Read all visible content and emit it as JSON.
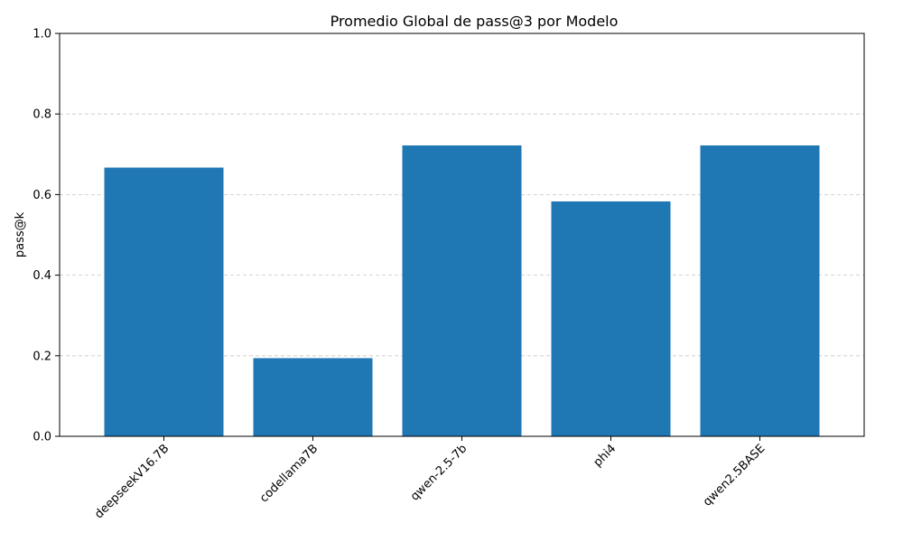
{
  "chart_data": {
    "type": "bar",
    "title": "Promedio Global de pass@3 por Modelo",
    "xlabel": "",
    "ylabel": "pass@k",
    "categories": [
      "deepseekV16.7B",
      "codellama7B",
      "qwen-2.5-7b",
      "phi4",
      "qwen2.5BASE"
    ],
    "values": [
      0.667,
      0.194,
      0.722,
      0.583,
      0.722
    ],
    "ylim": [
      0,
      1.0
    ],
    "yticks": [
      "0.0",
      "0.2",
      "0.4",
      "0.6",
      "0.8",
      "1.0"
    ],
    "grid": "y-dashed",
    "bar_color": "#1f77b4"
  }
}
